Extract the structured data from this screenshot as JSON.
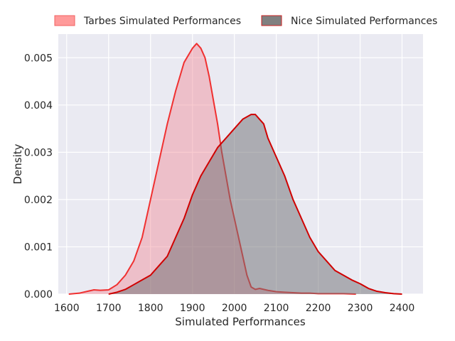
{
  "chart_data": {
    "type": "area",
    "title": "",
    "xlabel": "Simulated Performances",
    "ylabel": "Density",
    "xlim": [
      1580,
      2450
    ],
    "ylim": [
      0,
      0.0055
    ],
    "xticks": [
      1600,
      1700,
      1800,
      1900,
      2000,
      2100,
      2200,
      2300,
      2400
    ],
    "yticks": [
      0.0,
      0.001,
      0.002,
      0.003,
      0.004,
      0.005
    ],
    "ytick_labels": [
      "0.000",
      "0.001",
      "0.002",
      "0.003",
      "0.004",
      "0.005"
    ],
    "grid": true,
    "legend_position": "top-center",
    "series": [
      {
        "name": "Tarbes Simulated Performances",
        "line_color": "#f03030",
        "fill_color": "#f28b96",
        "fill_opacity": 0.45,
        "legend_color": "#ff9a9a",
        "legend_edge": "#f06060",
        "x": [
          1605,
          1630,
          1650,
          1665,
          1680,
          1700,
          1720,
          1740,
          1760,
          1780,
          1800,
          1820,
          1840,
          1860,
          1880,
          1900,
          1910,
          1920,
          1930,
          1940,
          1950,
          1960,
          1970,
          1980,
          1990,
          2000,
          2010,
          2020,
          2030,
          2040,
          2050,
          2060,
          2070,
          2080,
          2100,
          2120,
          2140,
          2160,
          2180,
          2200,
          2220,
          2240,
          2260,
          2290
        ],
        "y": [
          0.0,
          2e-05,
          6e-05,
          9e-05,
          8e-05,
          9e-05,
          0.0002,
          0.0004,
          0.0007,
          0.0012,
          0.002,
          0.0028,
          0.0036,
          0.0043,
          0.0049,
          0.0052,
          0.0053,
          0.0052,
          0.005,
          0.0046,
          0.0041,
          0.0036,
          0.003,
          0.0025,
          0.002,
          0.0016,
          0.0012,
          0.0008,
          0.0004,
          0.00015,
          0.0001,
          0.00012,
          0.0001,
          8e-05,
          5e-05,
          4e-05,
          3e-05,
          2e-05,
          2e-05,
          1e-05,
          1e-05,
          1e-05,
          1e-05,
          0.0
        ]
      },
      {
        "name": "Nice Simulated Performances",
        "line_color": "#d00000",
        "fill_color": "#6e6e72",
        "fill_opacity": 0.5,
        "legend_color": "#808080",
        "legend_edge": "#cc2222",
        "x": [
          1700,
          1720,
          1740,
          1760,
          1780,
          1800,
          1820,
          1840,
          1860,
          1880,
          1900,
          1920,
          1940,
          1960,
          1980,
          2000,
          2020,
          2040,
          2050,
          2060,
          2070,
          2080,
          2100,
          2120,
          2140,
          2160,
          2180,
          2200,
          2220,
          2240,
          2260,
          2280,
          2300,
          2320,
          2340,
          2360,
          2380,
          2400
        ],
        "y": [
          0.0,
          4e-05,
          0.0001,
          0.0002,
          0.0003,
          0.0004,
          0.0006,
          0.0008,
          0.0012,
          0.0016,
          0.0021,
          0.0025,
          0.0028,
          0.0031,
          0.0033,
          0.0035,
          0.0037,
          0.0038,
          0.0038,
          0.0037,
          0.0036,
          0.0033,
          0.0029,
          0.0025,
          0.002,
          0.0016,
          0.0012,
          0.0009,
          0.0007,
          0.0005,
          0.0004,
          0.0003,
          0.00022,
          0.00012,
          6e-05,
          3e-05,
          1e-05,
          0.0
        ]
      }
    ]
  }
}
